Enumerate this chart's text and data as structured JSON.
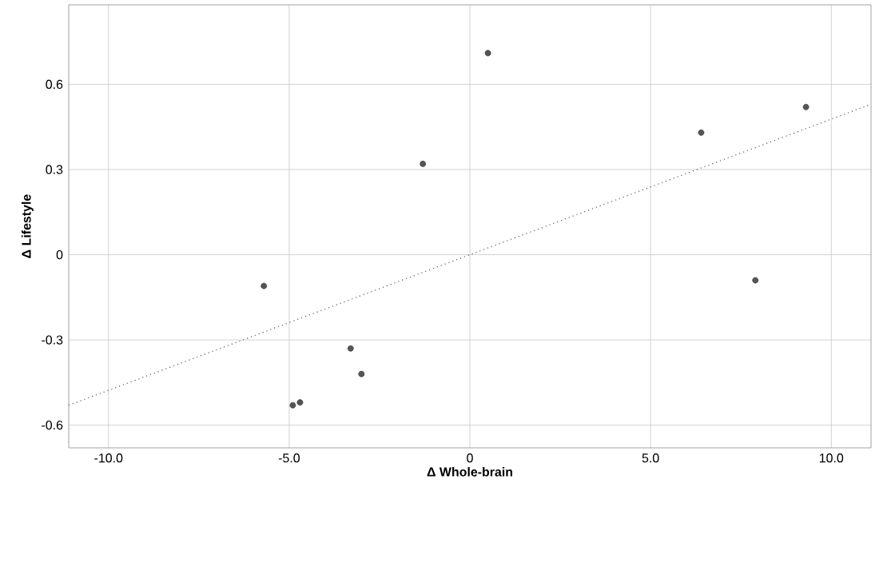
{
  "chart_data": {
    "type": "scatter",
    "xlabel": "Δ Whole-brain",
    "ylabel": "Δ Lifestyle",
    "xlim": [
      -11.1,
      11.1
    ],
    "ylim": [
      -0.68,
      0.88
    ],
    "xticks": [
      {
        "value": -10,
        "label": "-10.0"
      },
      {
        "value": -5,
        "label": "-5.0"
      },
      0,
      {
        "value": 5,
        "label": "5.0"
      },
      {
        "value": 10,
        "label": "10.0"
      }
    ],
    "yticks": [
      {
        "value": -0.6,
        "label": "-0.6"
      },
      {
        "value": -0.3,
        "label": "-0.3"
      },
      0,
      {
        "value": 0.3,
        "label": "0.3"
      },
      {
        "value": 0.6,
        "label": "0.6"
      }
    ],
    "grid": true,
    "series": [
      {
        "marker": "circle",
        "color": "#555555",
        "x": [
          0.5,
          -1.3,
          6.4,
          9.3,
          -5.7,
          7.9,
          -3.3,
          -3.0,
          -4.9,
          -4.7
        ],
        "values": [
          0.71,
          0.32,
          0.43,
          0.52,
          -0.11,
          -0.09,
          -0.33,
          -0.42,
          -0.53,
          -0.52
        ]
      },
      {
        "type": "line",
        "color": "#555555",
        "line_style": "dotted",
        "marker": "none",
        "x": [
          -11.1,
          11.1
        ],
        "values": [
          -0.53,
          0.53
        ]
      }
    ]
  }
}
